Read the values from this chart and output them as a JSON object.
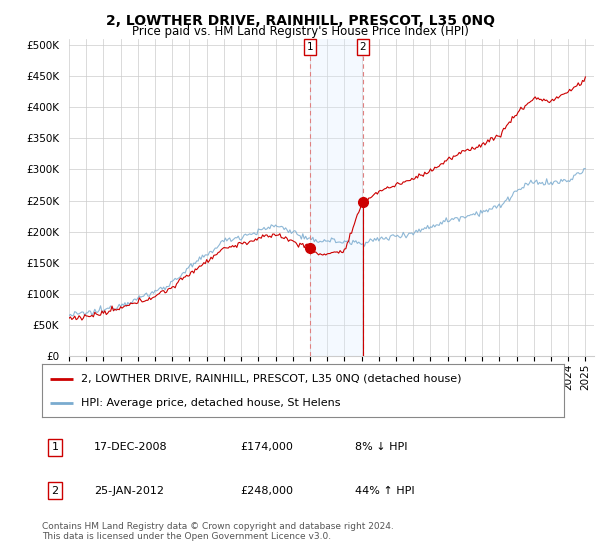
{
  "title": "2, LOWTHER DRIVE, RAINHILL, PRESCOT, L35 0NQ",
  "subtitle": "Price paid vs. HM Land Registry's House Price Index (HPI)",
  "ylabel_ticks": [
    0,
    50000,
    100000,
    150000,
    200000,
    250000,
    300000,
    350000,
    400000,
    450000,
    500000
  ],
  "ylabel_labels": [
    "£0",
    "£50K",
    "£100K",
    "£150K",
    "£200K",
    "£250K",
    "£300K",
    "£350K",
    "£400K",
    "£450K",
    "£500K"
  ],
  "ylim": [
    0,
    510000
  ],
  "xlim_start": 1995.0,
  "xlim_end": 2025.5,
  "sale1_x": 2009.0,
  "sale1_y": 174000,
  "sale1_label": "1",
  "sale2_x": 2012.08,
  "sale2_y": 248000,
  "sale2_label": "2",
  "legend_line1": "2, LOWTHER DRIVE, RAINHILL, PRESCOT, L35 0NQ (detached house)",
  "legend_line2": "HPI: Average price, detached house, St Helens",
  "table_row1_num": "1",
  "table_row1_date": "17-DEC-2008",
  "table_row1_price": "£174,000",
  "table_row1_hpi": "8% ↓ HPI",
  "table_row2_num": "2",
  "table_row2_date": "25-JAN-2012",
  "table_row2_price": "£248,000",
  "table_row2_hpi": "44% ↑ HPI",
  "footer": "Contains HM Land Registry data © Crown copyright and database right 2024.\nThis data is licensed under the Open Government Licence v3.0.",
  "line_color_red": "#cc0000",
  "line_color_blue": "#7aabcf",
  "shade_color": "#ddeeff",
  "vline_color": "#e08080",
  "background_color": "#ffffff",
  "grid_color": "#cccccc",
  "title_fontsize": 10,
  "subtitle_fontsize": 8.5,
  "tick_fontsize": 7.5,
  "legend_fontsize": 8,
  "table_fontsize": 8,
  "footer_fontsize": 6.5
}
